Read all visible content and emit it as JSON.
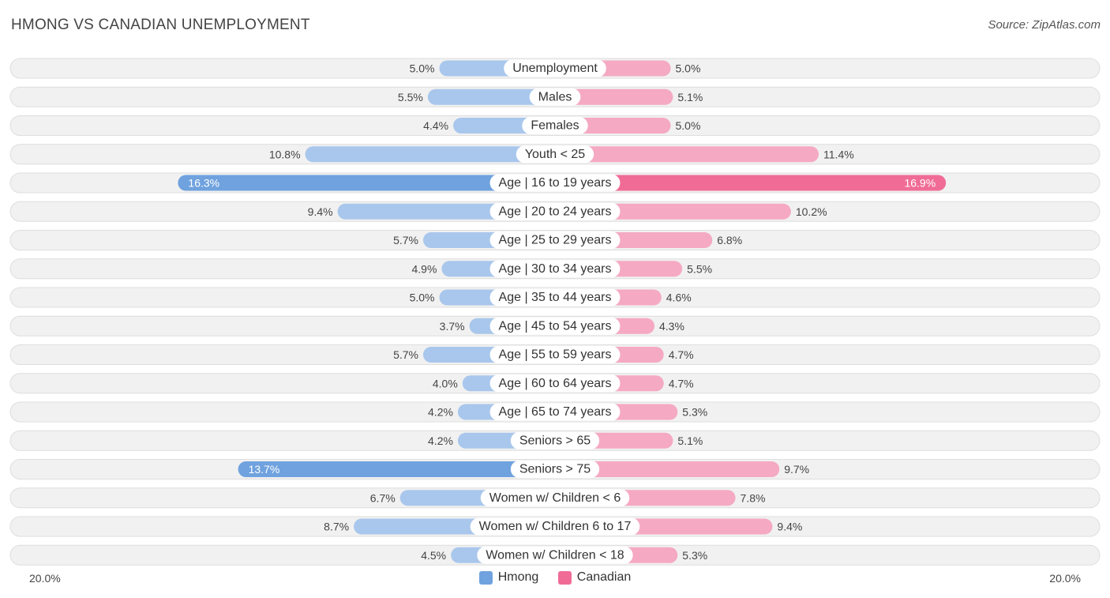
{
  "header": {
    "title": "HMONG VS CANADIAN UNEMPLOYMENT",
    "source": "Source: ZipAtlas.com"
  },
  "colors": {
    "hmong": "#6fa2de",
    "hmong_light": "#a9c7ec",
    "canadian": "#f06c97",
    "canadian_light": "#f5a9c2"
  },
  "legend": {
    "hmong": "Hmong",
    "canadian": "Canadian"
  },
  "axis": {
    "left_label": "20.0%",
    "right_label": "20.0%"
  },
  "chart_data": {
    "type": "bar",
    "orientation": "horizontal-diverging",
    "title": "HMONG VS CANADIAN UNEMPLOYMENT",
    "xlim": [
      0,
      20
    ],
    "categories": [
      "Unemployment",
      "Males",
      "Females",
      "Youth < 25",
      "Age | 16 to 19 years",
      "Age | 20 to 24 years",
      "Age | 25 to 29 years",
      "Age | 30 to 34 years",
      "Age | 35 to 44 years",
      "Age | 45 to 54 years",
      "Age | 55 to 59 years",
      "Age | 60 to 64 years",
      "Age | 65 to 74 years",
      "Seniors > 65",
      "Seniors > 75",
      "Women w/ Children < 6",
      "Women w/ Children 6 to 17",
      "Women w/ Children < 18"
    ],
    "series": [
      {
        "name": "Hmong",
        "values": [
          5.0,
          5.5,
          4.4,
          10.8,
          16.3,
          9.4,
          5.7,
          4.9,
          5.0,
          3.7,
          5.7,
          4.0,
          4.2,
          4.2,
          13.7,
          6.7,
          8.7,
          4.5
        ],
        "labels": [
          "5.0%",
          "5.5%",
          "4.4%",
          "10.8%",
          "16.3%",
          "9.4%",
          "5.7%",
          "4.9%",
          "5.0%",
          "3.7%",
          "5.7%",
          "4.0%",
          "4.2%",
          "4.2%",
          "13.7%",
          "6.7%",
          "8.7%",
          "4.5%"
        ]
      },
      {
        "name": "Canadian",
        "values": [
          5.0,
          5.1,
          5.0,
          11.4,
          16.9,
          10.2,
          6.8,
          5.5,
          4.6,
          4.3,
          4.7,
          4.7,
          5.3,
          5.1,
          9.7,
          7.8,
          9.4,
          5.3
        ],
        "labels": [
          "5.0%",
          "5.1%",
          "5.0%",
          "11.4%",
          "16.9%",
          "10.2%",
          "6.8%",
          "5.5%",
          "4.6%",
          "4.3%",
          "4.7%",
          "4.7%",
          "5.3%",
          "5.1%",
          "9.7%",
          "7.8%",
          "9.4%",
          "5.3%"
        ]
      }
    ]
  }
}
